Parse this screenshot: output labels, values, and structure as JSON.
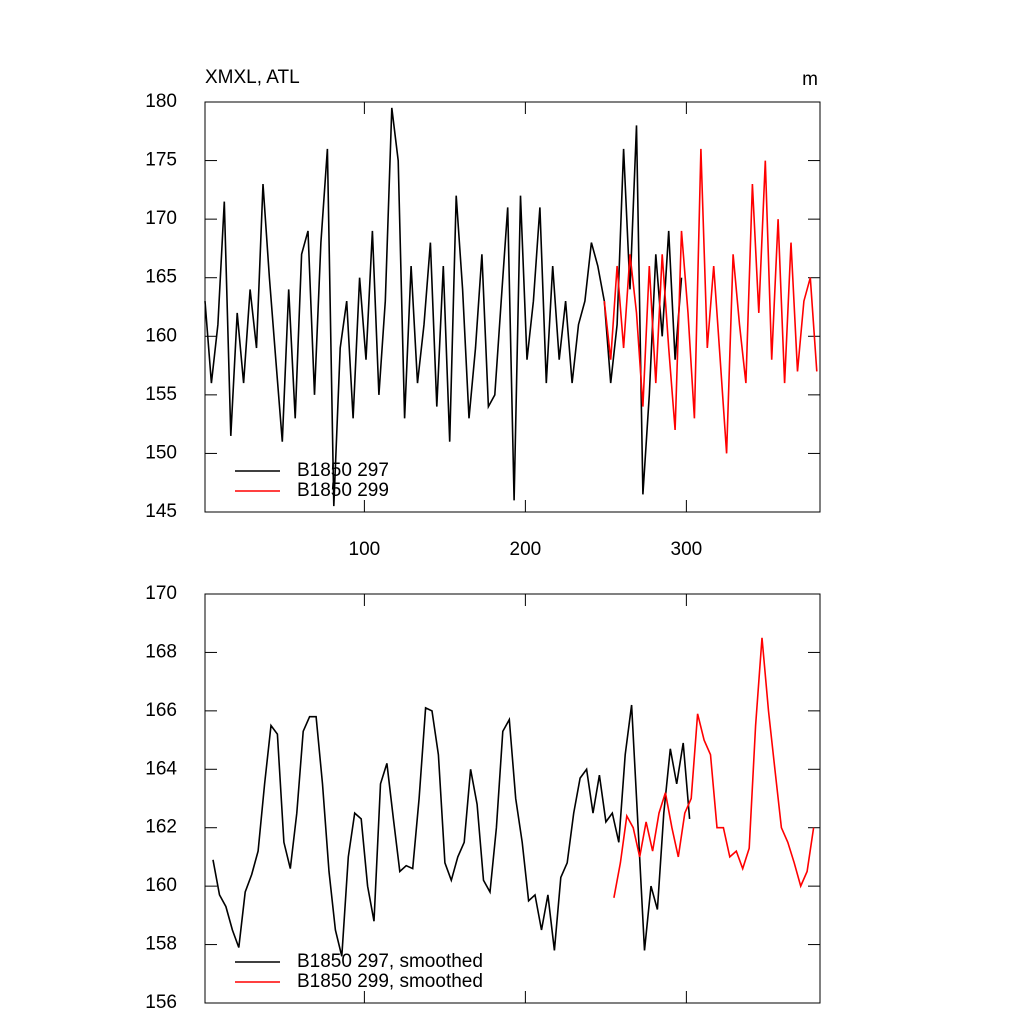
{
  "chart_data": [
    {
      "type": "line",
      "title": "XMXL, ATL",
      "units": "m",
      "xlim": [
        1,
        383
      ],
      "xticks": [
        100,
        200,
        300
      ],
      "show_xtick_labels": true,
      "ylim": [
        145,
        180
      ],
      "yticks": [
        145,
        150,
        155,
        160,
        165,
        170,
        175,
        180
      ],
      "legend": "lower left",
      "series": [
        {
          "name": "B1850 297",
          "color": "#000000",
          "x": [
            1,
            5,
            9,
            13,
            17,
            21,
            25,
            29,
            33,
            37,
            41,
            45,
            49,
            53,
            57,
            61,
            65,
            69,
            73,
            77,
            81,
            85,
            89,
            93,
            97,
            101,
            105,
            109,
            113,
            117,
            121,
            125,
            129,
            133,
            137,
            141,
            145,
            149,
            153,
            157,
            161,
            165,
            169,
            173,
            177,
            181,
            185,
            189,
            193,
            197,
            201,
            205,
            209,
            213,
            217,
            221,
            225,
            229,
            233,
            237,
            241,
            245,
            249,
            253,
            257,
            261,
            265,
            269,
            273,
            277,
            281,
            285,
            289,
            293,
            297
          ],
          "values": [
            163,
            156,
            161,
            171.5,
            151.5,
            162,
            156,
            164,
            159,
            173,
            165,
            158,
            151,
            164,
            153,
            167,
            169,
            155,
            168,
            176,
            145.5,
            159,
            163,
            153,
            165,
            158,
            169,
            155,
            163,
            179.5,
            175,
            153,
            166,
            156,
            161,
            168,
            154,
            166,
            151,
            172,
            164,
            153,
            159,
            167,
            154,
            155,
            163,
            171,
            146,
            172,
            158,
            163,
            171,
            156,
            166,
            158,
            163,
            156,
            161,
            163,
            168,
            166,
            163,
            156,
            161,
            176,
            164,
            178,
            146.5,
            155,
            167,
            160,
            169,
            158,
            165
          ]
        },
        {
          "name": "B1850 299",
          "color": "#ff0000",
          "x": [
            249,
            253,
            257,
            261,
            265,
            269,
            273,
            277,
            281,
            285,
            289,
            293,
            297,
            301,
            305,
            309,
            313,
            317,
            321,
            325,
            329,
            333,
            337,
            341,
            345,
            349,
            353,
            357,
            361,
            365,
            369,
            373,
            377,
            381
          ],
          "values": [
            163,
            158,
            166,
            159,
            167,
            162,
            154,
            166,
            156,
            167,
            159,
            152,
            169,
            162,
            153,
            176,
            159,
            166,
            158,
            150,
            167,
            161,
            156,
            173,
            162,
            175,
            158,
            170,
            156,
            168,
            157,
            163,
            165,
            157
          ]
        }
      ]
    },
    {
      "type": "line",
      "xlim": [
        1,
        383
      ],
      "xticks": [
        100,
        200,
        300
      ],
      "show_xtick_labels": false,
      "ylim": [
        156,
        170
      ],
      "yticks": [
        156,
        158,
        160,
        162,
        164,
        166,
        168,
        170
      ],
      "legend": "lower left",
      "series": [
        {
          "name": "B1850 297, smoothed",
          "color": "#000000",
          "x": [
            6,
            10,
            14,
            18,
            22,
            26,
            30,
            34,
            38,
            42,
            46,
            50,
            54,
            58,
            62,
            66,
            70,
            74,
            78,
            82,
            86,
            90,
            94,
            98,
            102,
            106,
            110,
            114,
            118,
            122,
            126,
            130,
            134,
            138,
            142,
            146,
            150,
            154,
            158,
            162,
            166,
            170,
            174,
            178,
            182,
            186,
            190,
            194,
            198,
            202,
            206,
            210,
            214,
            218,
            222,
            226,
            230,
            234,
            238,
            242,
            246,
            250,
            254,
            258,
            262,
            266,
            270,
            274,
            278,
            282,
            286,
            290,
            294,
            298,
            302
          ],
          "values": [
            160.9,
            159.7,
            159.3,
            158.5,
            157.9,
            159.8,
            160.4,
            161.2,
            163.5,
            165.5,
            165.2,
            161.5,
            160.6,
            162.5,
            165.3,
            165.8,
            165.8,
            163.5,
            160.5,
            158.5,
            157.6,
            161,
            162.5,
            162.3,
            160,
            158.8,
            163.5,
            164.2,
            162.3,
            160.5,
            160.7,
            160.6,
            163,
            166.1,
            166,
            164.5,
            160.8,
            160.2,
            161,
            161.5,
            164,
            162.8,
            160.2,
            159.8,
            162,
            165.3,
            165.7,
            163,
            161.5,
            159.5,
            159.7,
            158.5,
            159.7,
            157.8,
            160.3,
            160.8,
            162.5,
            163.7,
            164,
            162.5,
            163.8,
            162.2,
            162.5,
            161.5,
            164.5,
            166.2,
            162,
            157.8,
            160,
            159.2,
            162.5,
            164.7,
            163.5,
            164.9,
            162.3
          ]
        },
        {
          "name": "B1850 299, smoothed",
          "color": "#ff0000",
          "x": [
            255,
            259,
            263,
            267,
            271,
            275,
            279,
            283,
            287,
            291,
            295,
            299,
            303,
            307,
            311,
            315,
            319,
            323,
            327,
            331,
            335,
            339,
            343,
            347,
            351,
            355,
            359,
            363,
            367,
            371,
            375,
            379
          ],
          "values": [
            159.6,
            160.8,
            162.4,
            162,
            161,
            162.2,
            161.2,
            162.5,
            163.2,
            162,
            161,
            162.5,
            163,
            165.9,
            165,
            164.5,
            162,
            162,
            161,
            161.2,
            160.6,
            161.3,
            165.5,
            168.5,
            166,
            164,
            162,
            161.5,
            160.8,
            160,
            160.5,
            162
          ]
        }
      ]
    }
  ]
}
